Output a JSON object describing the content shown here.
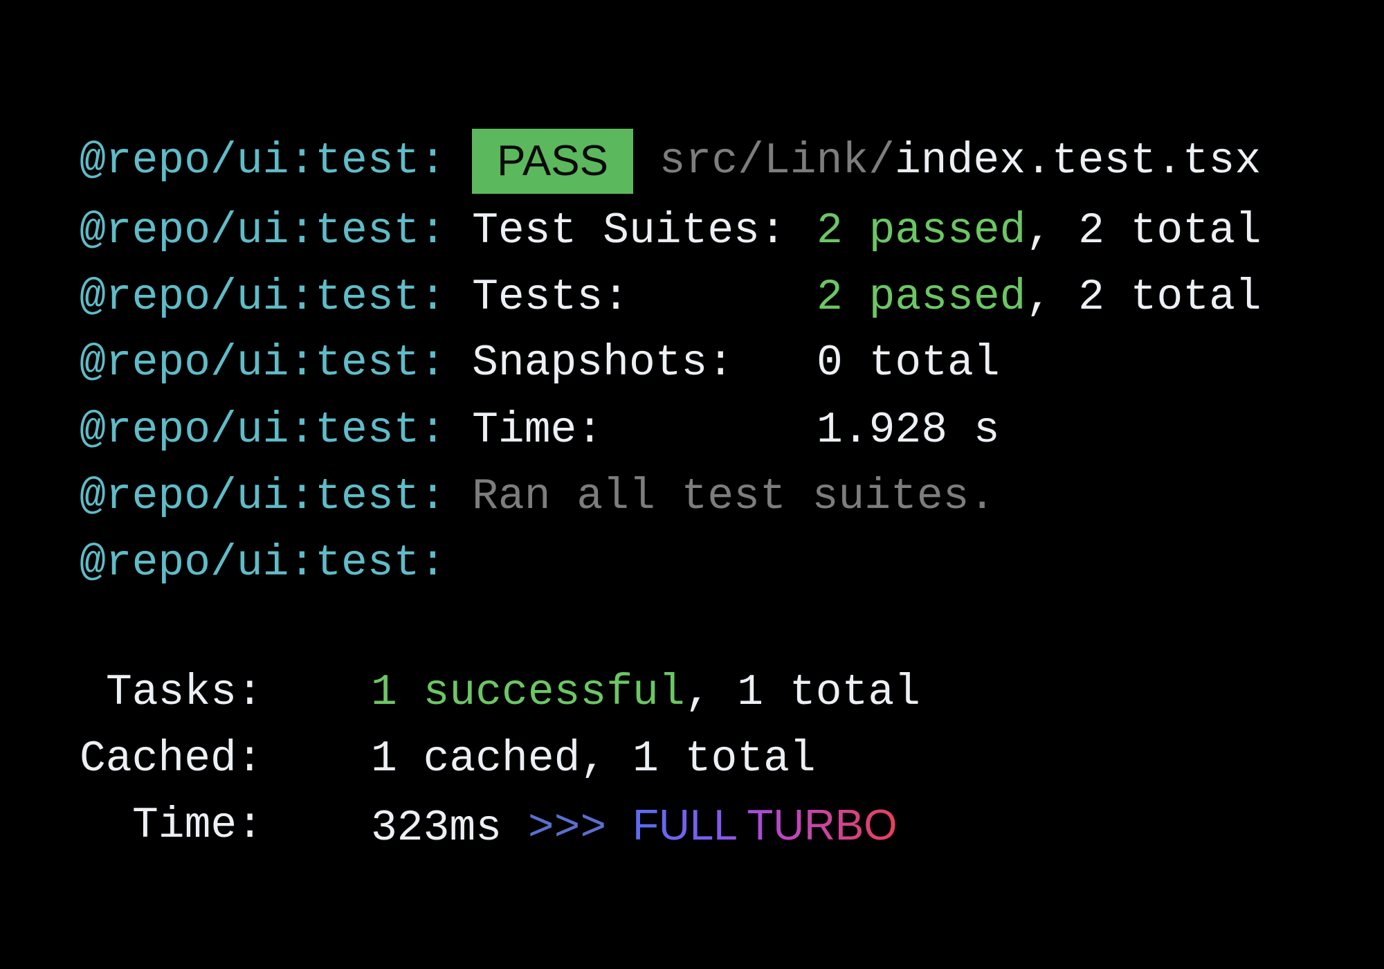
{
  "prefix": "@repo/ui:test:",
  "lines": {
    "pass": {
      "badge": "PASS",
      "path_dir": "src/Link/",
      "path_file": "index.test.tsx"
    },
    "suites": {
      "label": "Test Suites:",
      "passed": "2 passed",
      "rest": ", 2 total"
    },
    "tests": {
      "label": "Tests:",
      "passed": "2 passed",
      "rest": ", 2 total"
    },
    "snapshots": {
      "label": "Snapshots:",
      "value": "0 total"
    },
    "time": {
      "label": "Time:",
      "value": "1.928 s"
    },
    "ran": {
      "text": "Ran all test suites."
    }
  },
  "summary": {
    "tasks": {
      "label": "Tasks:",
      "successful": "1 successful",
      "rest": ", 1 total"
    },
    "cached": {
      "label": "Cached:",
      "value": "1 cached, 1 total"
    },
    "time": {
      "label": "Time:",
      "value": "323ms",
      "arrows": ">>>",
      "turbo": "FULL TURBO"
    }
  },
  "colors": {
    "prefix": "#5fbcc8",
    "pass_badge": "#5cb85c",
    "success": "#6cc664",
    "dim": "#7d7d7d",
    "turbo_start": "#5e6cf0",
    "turbo_end": "#e8405a"
  }
}
